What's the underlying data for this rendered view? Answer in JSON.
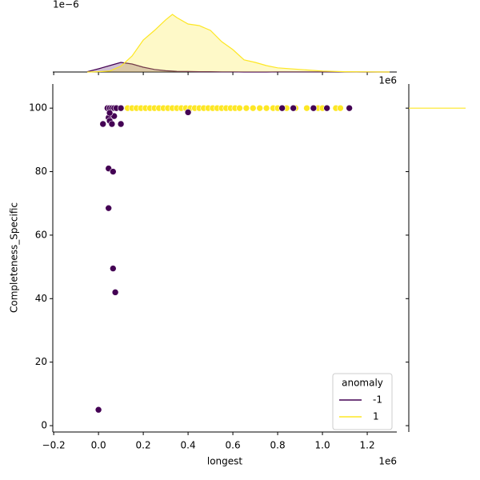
{
  "chart_data": {
    "type": "scatter",
    "x_label": "longest",
    "y_label": "Completeness_Specific",
    "x_offset": "1e6",
    "xlim": [
      -0.204,
      1.332
    ],
    "ylim": [
      -2,
      107.6
    ],
    "xticks": [
      {
        "value": -0.2,
        "label": "−0.2"
      },
      {
        "value": 0,
        "label": "0.0"
      },
      0.2,
      0.4,
      0.6,
      0.8,
      {
        "value": 1.0,
        "label": "1.0"
      },
      1.2
    ],
    "yticks": [
      0,
      20,
      40,
      60,
      80,
      100
    ],
    "legend_title": "anomaly",
    "legend_position": "lower right",
    "series": [
      {
        "name": "-1",
        "color": "#440154",
        "x": [
          0,
          0.02,
          0.04,
          0.05,
          0.06,
          0.07,
          0.08,
          0.1,
          0.045,
          0.05,
          0.06,
          0.07,
          0.1,
          0.045,
          0.065,
          0.045,
          0.065,
          0.075,
          0.4,
          0.82,
          0.87,
          0.96,
          1.02,
          1.12,
          0.05
        ],
        "values": [
          5,
          95,
          100,
          100,
          100,
          100,
          100,
          100,
          97,
          96,
          95,
          97.5,
          95,
          81,
          80,
          68.5,
          49.5,
          42,
          98.7,
          100,
          100,
          100,
          100,
          100,
          98.5
        ]
      },
      {
        "name": "1",
        "color": "#fde725",
        "x": [
          0.04,
          0.07,
          0.1,
          0.13,
          0.15,
          0.17,
          0.19,
          0.21,
          0.23,
          0.25,
          0.27,
          0.29,
          0.31,
          0.33,
          0.35,
          0.37,
          0.39,
          0.41,
          0.43,
          0.45,
          0.47,
          0.49,
          0.51,
          0.53,
          0.55,
          0.57,
          0.59,
          0.61,
          0.63,
          0.66,
          0.69,
          0.72,
          0.75,
          0.78,
          0.8,
          0.84,
          0.88,
          0.93,
          0.98,
          1.0,
          1.06,
          1.08
        ],
        "values": [
          100,
          100,
          100,
          100,
          100,
          100,
          100,
          100,
          100,
          100,
          100,
          100,
          100,
          100,
          100,
          100,
          100,
          100,
          100,
          100,
          100,
          100,
          100,
          100,
          100,
          100,
          100,
          100,
          100,
          100,
          100,
          100,
          100,
          100,
          100,
          100,
          100,
          100,
          100,
          100,
          100,
          100
        ]
      }
    ],
    "marginal_x": {
      "type": "kde",
      "y_offset": "1e−6",
      "x_offset": "1e6",
      "ylim": [
        0,
        2.0
      ],
      "x": [
        -0.05,
        0,
        0.05,
        0.1,
        0.15,
        0.2,
        0.25,
        0.3,
        0.33,
        0.35,
        0.4,
        0.45,
        0.5,
        0.55,
        0.6,
        0.65,
        0.7,
        0.75,
        0.8,
        0.9,
        1.0,
        1.1,
        1.2,
        1.3
      ],
      "series": [
        {
          "name": "-1",
          "color": "#440154",
          "values": [
            0.01,
            0.1,
            0.2,
            0.3,
            0.25,
            0.15,
            0.08,
            0.04,
            0.03,
            0.02,
            0.015,
            0.01,
            0.01,
            0.005,
            0.005,
            0,
            0,
            0,
            0.005,
            0.005,
            0.005,
            0.005,
            0,
            0
          ]
        },
        {
          "name": "1",
          "color": "#fde725",
          "values": [
            0,
            0.01,
            0.03,
            0.18,
            0.5,
            1.0,
            1.3,
            1.63,
            1.8,
            1.7,
            1.5,
            1.45,
            1.3,
            0.95,
            0.7,
            0.38,
            0.3,
            0.2,
            0.13,
            0.08,
            0.03,
            0.01,
            0.005,
            0
          ]
        }
      ]
    },
    "marginal_y": {
      "type": "kde",
      "color": "#fde725",
      "value": 100
    }
  }
}
